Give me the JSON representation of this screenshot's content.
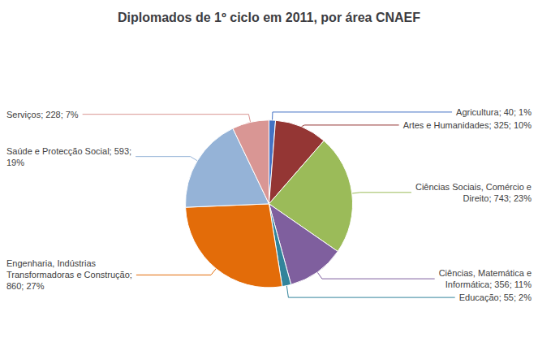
{
  "chart_data": {
    "type": "pie",
    "title": "Diplomados de 1º ciclo em 2011, por área CNAEF",
    "categories": [
      "Agricultura; 40; 1%",
      "Artes e Humanidades; 325; 10%",
      "Ciências Sociais, Comércio e\nDireito; 743; 23%",
      "Ciências, Matemática e\nInformática; 356; 11%",
      "Educação; 55; 2%",
      "Engenharia, Indústrias\nTransformadoras e Construção;\n860; 27%",
      "Saúde e Protecção Social; 593;\n19%",
      "Serviços; 228; 7%"
    ],
    "values": [
      40,
      325,
      743,
      356,
      55,
      860,
      593,
      228
    ],
    "colors": [
      "#4472C4",
      "#943634",
      "#9BBB59",
      "#7F5F9E",
      "#31849B",
      "#E36C09",
      "#95B3D7",
      "#D99694"
    ]
  }
}
